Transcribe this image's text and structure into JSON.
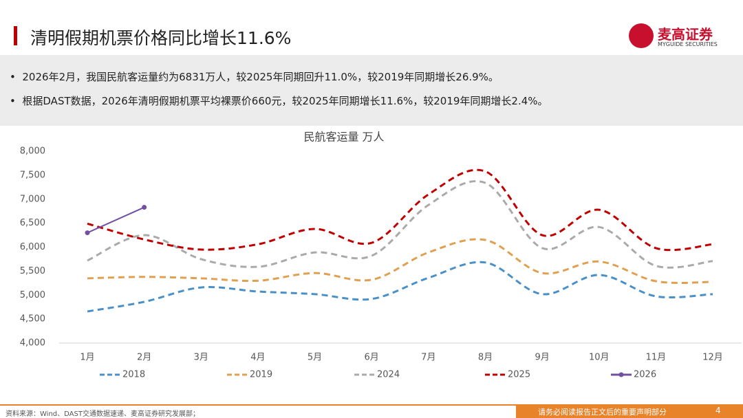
{
  "header": {
    "title": "清明假期机票价格同比增长11.6%",
    "logo_name": "麦高证券",
    "logo_sub": "MYGUIDE SECURITIES"
  },
  "bullets": [
    "2026年2月，我国民航客运量约为6831万人，较2025年同期回升11.0%，较2019年同期增长26.9%。",
    "根据DAST数据，2026年清明假期机票平均裸票价660元，较2025年同期增长11.6%，较2019年同期增长2.4%。"
  ],
  "chart_data": {
    "type": "line",
    "title": "民航客运量 万人",
    "smooth": true,
    "categories": [
      "1月",
      "2月",
      "3月",
      "4月",
      "5月",
      "6月",
      "7月",
      "8月",
      "9月",
      "10月",
      "11月",
      "12月"
    ],
    "ylim": [
      4000,
      8000
    ],
    "yticks": [
      {
        "value": 4000,
        "label": "4,000"
      },
      {
        "value": 4500,
        "label": "4,500"
      },
      {
        "value": 5000,
        "label": "5,000"
      },
      {
        "value": 5500,
        "label": "5,500"
      },
      {
        "value": 6000,
        "label": "6,000"
      },
      {
        "value": 6500,
        "label": "6,500"
      },
      {
        "value": 7000,
        "label": "7,000"
      },
      {
        "value": 7500,
        "label": "7,500"
      },
      {
        "value": 8000,
        "label": "8,000"
      }
    ],
    "series": [
      {
        "name": "2018",
        "color": "#4a90c8",
        "dashed": true,
        "values": [
          4660,
          4860,
          5160,
          5075,
          5020,
          4920,
          5360,
          5680,
          5020,
          5420,
          4975,
          5020
        ]
      },
      {
        "name": "2019",
        "color": "#e0a050",
        "dashed": true,
        "values": [
          5350,
          5380,
          5350,
          5300,
          5460,
          5320,
          5890,
          6150,
          5460,
          5700,
          5290,
          5275
        ]
      },
      {
        "name": "2024",
        "color": "#aaaaaa",
        "dashed": true,
        "values": [
          5720,
          6250,
          5750,
          5590,
          5890,
          5820,
          6880,
          7340,
          5980,
          6420,
          5610,
          5710
        ]
      },
      {
        "name": "2025",
        "color": "#c00000",
        "dashed": true,
        "values": [
          6490,
          6160,
          5950,
          6060,
          6380,
          6090,
          7100,
          7580,
          6250,
          6780,
          5980,
          6060
        ]
      },
      {
        "name": "2026",
        "color": "#7050a0",
        "dashed": false,
        "markers": true,
        "values": [
          6300,
          6831,
          null,
          null,
          null,
          null,
          null,
          null,
          null,
          null,
          null,
          null
        ]
      }
    ]
  },
  "footer": {
    "source": "资料来源：Wind、DAST交通数据速递、麦高证券研究发展部；",
    "disclaimer": "请务必阅读报告正文后的重要声明部分",
    "page": "4"
  }
}
